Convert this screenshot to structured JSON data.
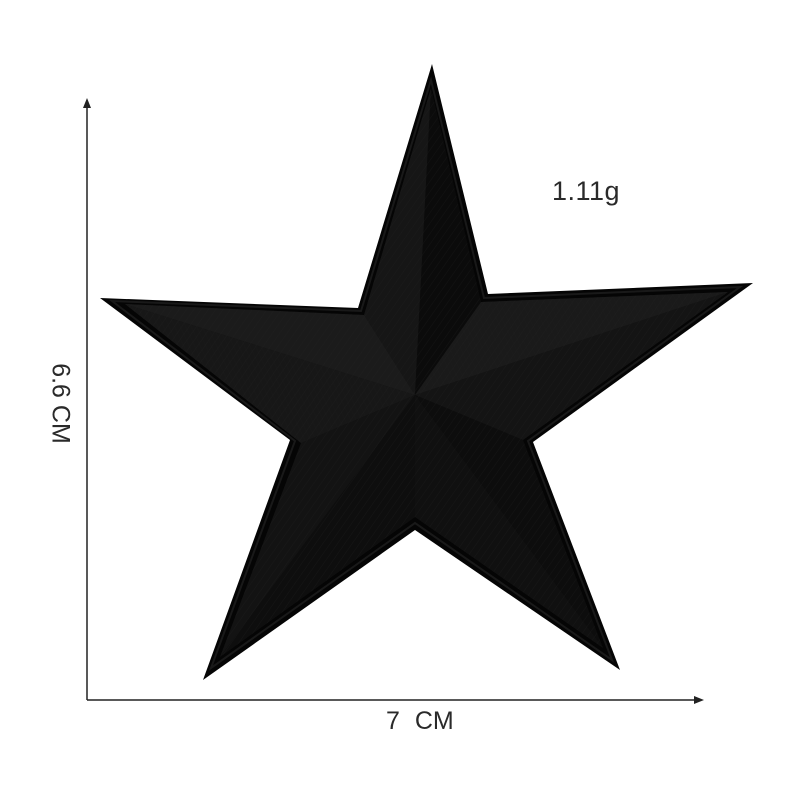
{
  "product": {
    "weight_text": "1.11g",
    "width_text": "7 CM",
    "height_text": "6.6 CM",
    "patch_color": "#111111",
    "shade_dark": "#0b0b0b",
    "shade_light": "#1b1b1b",
    "edge_color": "#050505",
    "background": "#ffffff",
    "axis_color": "#222222"
  }
}
